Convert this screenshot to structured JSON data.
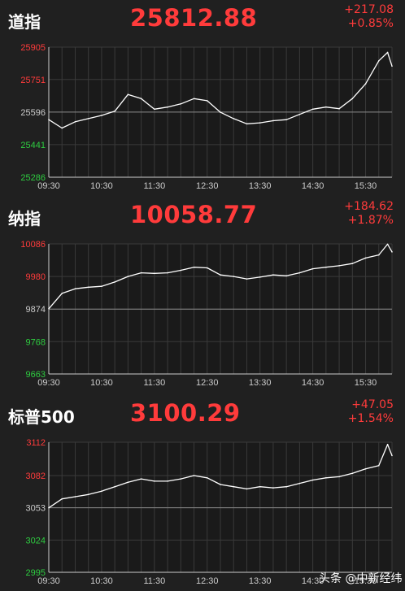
{
  "chart_data": [
    {
      "type": "line",
      "title": "道指",
      "value": "25812.88",
      "change": "+217.08",
      "change_pct": "+0.85%",
      "xticks": [
        "09:30",
        "10:30",
        "11:30",
        "12:30",
        "13:30",
        "14:30",
        "15:30"
      ],
      "yticks": [
        "25905",
        "25751",
        "25596",
        "25441",
        "25286"
      ],
      "ylim": [
        25286,
        25905
      ],
      "prev_close": 25596,
      "x": [
        "09:30",
        "09:45",
        "10:00",
        "10:15",
        "10:30",
        "10:45",
        "11:00",
        "11:15",
        "11:30",
        "11:45",
        "12:00",
        "12:15",
        "12:30",
        "12:45",
        "13:00",
        "13:15",
        "13:30",
        "13:45",
        "14:00",
        "14:15",
        "14:30",
        "14:45",
        "15:00",
        "15:15",
        "15:30",
        "15:45",
        "15:55",
        "16:00"
      ],
      "values": [
        25560,
        25520,
        25550,
        25565,
        25580,
        25600,
        25680,
        25660,
        25610,
        25620,
        25635,
        25660,
        25650,
        25595,
        25565,
        25540,
        25545,
        25555,
        25560,
        25585,
        25610,
        25620,
        25612,
        25660,
        25730,
        25840,
        25880,
        25815
      ]
    },
    {
      "type": "line",
      "title": "纳指",
      "value": "10058.77",
      "change": "+184.62",
      "change_pct": "+1.87%",
      "xticks": [
        "09:30",
        "10:30",
        "11:30",
        "12:30",
        "13:30",
        "14:30",
        "15:30"
      ],
      "yticks": [
        "10086",
        "9980",
        "9874",
        "9768",
        "9663"
      ],
      "ylim": [
        9663,
        10086
      ],
      "prev_close": 9874,
      "x": [
        "09:30",
        "09:45",
        "10:00",
        "10:15",
        "10:30",
        "10:45",
        "11:00",
        "11:15",
        "11:30",
        "11:45",
        "12:00",
        "12:15",
        "12:30",
        "12:45",
        "13:00",
        "13:15",
        "13:30",
        "13:45",
        "14:00",
        "14:15",
        "14:30",
        "14:45",
        "15:00",
        "15:15",
        "15:30",
        "15:45",
        "15:55",
        "16:00"
      ],
      "values": [
        9875,
        9925,
        9940,
        9945,
        9948,
        9962,
        9980,
        9992,
        9990,
        9992,
        10000,
        10010,
        10008,
        9985,
        9980,
        9972,
        9978,
        9985,
        9982,
        9992,
        10005,
        10010,
        10015,
        10022,
        10040,
        10050,
        10085,
        10060
      ]
    },
    {
      "type": "line",
      "title": "标普500",
      "value": "3100.29",
      "change": "+47.05",
      "change_pct": "+1.54%",
      "xticks": [
        "09:30",
        "10:30",
        "11:30",
        "12:30",
        "13:30",
        "14:30",
        "15:30"
      ],
      "yticks": [
        "3112",
        "3082",
        "3053",
        "3024",
        "2995"
      ],
      "ylim": [
        2995,
        3112
      ],
      "prev_close": 3053,
      "x": [
        "09:30",
        "09:45",
        "10:00",
        "10:15",
        "10:30",
        "10:45",
        "11:00",
        "11:15",
        "11:30",
        "11:45",
        "12:00",
        "12:15",
        "12:30",
        "12:45",
        "13:00",
        "13:15",
        "13:30",
        "13:45",
        "14:00",
        "14:15",
        "14:30",
        "14:45",
        "15:00",
        "15:15",
        "15:30",
        "15:45",
        "15:55",
        "16:00"
      ],
      "values": [
        3053,
        3061,
        3063,
        3065,
        3068,
        3072,
        3076,
        3079,
        3077,
        3077,
        3079,
        3082,
        3080,
        3074,
        3072,
        3070,
        3072,
        3071,
        3072,
        3075,
        3078,
        3080,
        3081,
        3084,
        3088,
        3091,
        3110,
        3100
      ]
    }
  ],
  "watermark": "头条 @中新经纬",
  "colors": {
    "up": "#ff3b3b",
    "down": "#2ecc40",
    "axis": "#cccccc",
    "line": "#ffffff",
    "grid": "#3a3a3a",
    "background": "#202020",
    "plot_bg": "#1a1a1a"
  }
}
